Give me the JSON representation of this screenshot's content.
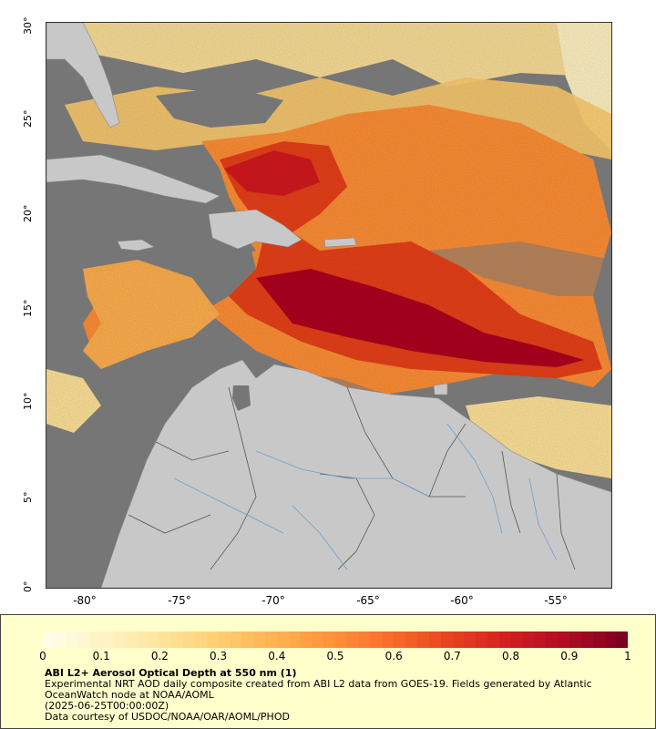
{
  "map": {
    "lat_labels": [
      "30°",
      "25°",
      "20°",
      "15°",
      "10°",
      "5°",
      "0°"
    ],
    "lon_labels": [
      "-80°",
      "-75°",
      "-70°",
      "-65°",
      "-60°",
      "-55°"
    ],
    "lat_range": [
      0,
      30
    ],
    "lon_range": [
      -82,
      -52
    ],
    "colors": {
      "ocean_nodata": "#767676",
      "land": "#c8c8c8",
      "borders": "#555555",
      "rivers": "#6a9fd0"
    }
  },
  "legend": {
    "ticks": [
      "0",
      "0.1",
      "0.2",
      "0.3",
      "0.4",
      "0.5",
      "0.6",
      "0.7",
      "0.8",
      "0.9",
      "1"
    ],
    "colorbar_colors": [
      "#fffde8",
      "#fff3c2",
      "#ffe39a",
      "#ffcd70",
      "#ffb050",
      "#ff9038",
      "#f86a2a",
      "#e8421e",
      "#d41e20",
      "#b00c22",
      "#800020"
    ],
    "title": "ABI L2+ Aerosol Optical Depth at 550 nm (1)",
    "line1": "Experimental NRT AOD daily composite created from ABI L2 data from GOES-19. Fields generated by Atlantic",
    "line2": "OceanWatch node at NOAA/AOML",
    "line3": "(2025-06-25T00:00:00Z)",
    "line4": "Data courtesy of USDOC/NOAA/OAR/AOML/PHOD"
  }
}
